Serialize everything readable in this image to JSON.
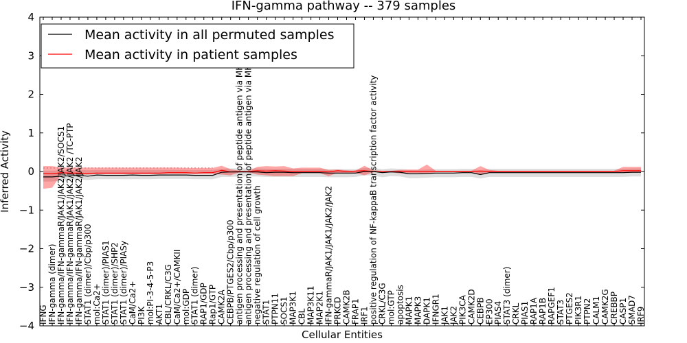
{
  "chart_data": {
    "type": "line",
    "title": "IFN-gamma pathway -- 379 samples",
    "xlabel": "Cellular Entities",
    "ylabel": "Inferred Activity",
    "ylim": [
      -4,
      4
    ],
    "yticks": [
      -4,
      -3,
      -2,
      -1,
      0,
      1,
      2,
      3,
      4
    ],
    "legend": {
      "placement": "top-left",
      "entries": [
        {
          "label": "Mean activity in all permuted samples",
          "color": "#000000"
        },
        {
          "label": "Mean activity in patient samples",
          "color": "#ff0000"
        }
      ]
    },
    "categories": [
      "IFNG",
      "IFN-gamma (dimer)",
      "IFN-gamma/IFN-gammaR/JAK1/JAK2/JAK2/SOCS1",
      "IFN-gamma/IFN-gammaR/JAK1/JAK2/JAK2 /TC-PTP",
      "IFN-gamma/IFN-gammaR/JAK1/JAK2/JAK2",
      "STAT1 (dimer)/Cbp/p300",
      "mol:Ca2+",
      "STAT1 (dimer)/PIAS1",
      "STAT1 (dimer)/SHP2",
      "STAT1 (dimer)/PIASy",
      "CaM/Ca2+",
      "PI3K",
      "mol:PI-3-4-5-P3",
      "AKT1",
      "CBL/CRKL/C3G",
      "CaM/Ca2+/CAMKII",
      "mol:GDP",
      "STAT1 (dimer)",
      "RAP1/GDP",
      "Rap1/GTP",
      "CAMK2A",
      "CEBPB/PTGES2/Cbp/p300",
      "antigen processing and presentation of peptide antigen via MHC class I",
      "antigen processing and presentation of peptide antigen via MHC class II",
      "negative regulation of cell growth",
      "STAT1",
      "PTPN11",
      "SOCS1",
      "MAP3K1",
      "CBL",
      "MAP3K11",
      "MAP2K1",
      "IFN-gammaR/JAK1/JAK1/JAK2/JAK2",
      "PRKCD",
      "CAMK2B",
      "FRAP1",
      "IRF1",
      "positive regulation of NF-kappaB transcription factor activity",
      "CRKL/C3G",
      "mol:GTP",
      "apoptosis",
      "MAPK1",
      "MAPK3",
      "DAPK1",
      "IFNGR1",
      "JAK1",
      "JAK2",
      "PIK3CA",
      "CAMK2D",
      "CEBPB",
      "EP300",
      "PIAS4",
      "STAT3 (dimer)",
      "CRKL",
      "PIAS1",
      "RAP1A",
      "RAP1B",
      "RAPGEF1",
      "STAT3",
      "PTGES2",
      "PIK3R1",
      "PTPN2",
      "CALM1",
      "CAMK2G",
      "CREBBP",
      "CASP1",
      "SMAD7",
      "IRF9"
    ],
    "series": [
      {
        "name": "Mean activity in all permuted samples",
        "color": "#000000",
        "values": [
          -0.14,
          -0.14,
          -0.12,
          -0.11,
          -0.1,
          -0.12,
          -0.09,
          -0.1,
          -0.1,
          -0.1,
          -0.09,
          -0.1,
          -0.1,
          -0.09,
          -0.09,
          -0.09,
          -0.09,
          -0.1,
          -0.1,
          -0.1,
          -0.02,
          -0.01,
          -0.01,
          -0.01,
          -0.01,
          -0.03,
          -0.02,
          -0.02,
          -0.03,
          -0.03,
          -0.03,
          -0.03,
          -0.04,
          -0.04,
          -0.04,
          -0.04,
          0.0,
          0.0,
          -0.03,
          -0.01,
          -0.02,
          -0.06,
          -0.06,
          -0.05,
          -0.04,
          -0.04,
          -0.04,
          -0.03,
          -0.03,
          -0.08,
          -0.03,
          -0.03,
          -0.03,
          -0.03,
          -0.03,
          -0.03,
          -0.03,
          -0.03,
          -0.03,
          -0.03,
          -0.03,
          -0.03,
          -0.03,
          -0.03,
          -0.03,
          -0.03,
          -0.02,
          -0.02
        ],
        "band_lower": [
          -0.26,
          -0.26,
          -0.24,
          -0.22,
          -0.21,
          -0.22,
          -0.2,
          -0.2,
          -0.2,
          -0.2,
          -0.2,
          -0.2,
          -0.2,
          -0.19,
          -0.19,
          -0.19,
          -0.19,
          -0.2,
          -0.2,
          -0.2,
          -0.14,
          -0.14,
          -0.13,
          -0.13,
          -0.13,
          -0.14,
          -0.14,
          -0.14,
          -0.14,
          -0.14,
          -0.14,
          -0.14,
          -0.15,
          -0.15,
          -0.15,
          -0.14,
          -0.1,
          -0.1,
          -0.15,
          -0.12,
          -0.13,
          -0.17,
          -0.17,
          -0.16,
          -0.15,
          -0.15,
          -0.15,
          -0.14,
          -0.14,
          -0.18,
          -0.14,
          -0.14,
          -0.14,
          -0.14,
          -0.14,
          -0.14,
          -0.14,
          -0.14,
          -0.14,
          -0.14,
          -0.14,
          -0.14,
          -0.14,
          -0.14,
          -0.14,
          -0.14,
          -0.13,
          -0.13
        ],
        "band_upper": [
          0.02,
          0.02,
          0.03,
          0.03,
          0.04,
          0.03,
          0.04,
          0.04,
          0.04,
          0.04,
          0.04,
          0.04,
          0.04,
          0.04,
          0.04,
          0.04,
          0.04,
          0.04,
          0.04,
          0.04,
          0.07,
          0.08,
          0.08,
          0.08,
          0.08,
          0.07,
          0.07,
          0.07,
          0.07,
          0.07,
          0.07,
          0.07,
          0.06,
          0.06,
          0.06,
          0.06,
          0.09,
          0.09,
          0.06,
          0.08,
          0.07,
          0.04,
          0.04,
          0.05,
          0.06,
          0.06,
          0.06,
          0.07,
          0.07,
          0.03,
          0.07,
          0.07,
          0.07,
          0.07,
          0.07,
          0.07,
          0.07,
          0.07,
          0.07,
          0.07,
          0.07,
          0.07,
          0.07,
          0.07,
          0.07,
          0.07,
          0.08,
          0.08
        ]
      },
      {
        "name": "Mean activity in patient samples",
        "color": "#ff0000",
        "values": [
          -0.05,
          -0.06,
          -0.03,
          -0.04,
          -0.04,
          -0.05,
          -0.04,
          -0.04,
          -0.04,
          -0.04,
          -0.04,
          -0.04,
          -0.04,
          -0.04,
          -0.03,
          -0.03,
          -0.03,
          -0.04,
          -0.03,
          -0.03,
          0.03,
          -0.01,
          0.0,
          0.0,
          0.02,
          0.01,
          0.02,
          0.01,
          0.0,
          0.0,
          0.0,
          0.0,
          -0.01,
          0.02,
          0.0,
          0.01,
          0.02,
          0.0,
          -0.01,
          0.0,
          0.0,
          0.0,
          0.0,
          0.0,
          0.0,
          0.0,
          0.0,
          0.0,
          0.0,
          0.01,
          0.0,
          0.0,
          0.0,
          0.0,
          0.0,
          0.0,
          0.0,
          0.0,
          0.0,
          0.0,
          0.0,
          0.0,
          0.0,
          0.0,
          0.0,
          0.02,
          0.02,
          0.02
        ],
        "band_lower": [
          -0.45,
          -0.42,
          -0.08,
          -0.08,
          -0.08,
          -0.08,
          -0.07,
          -0.07,
          -0.07,
          -0.07,
          -0.07,
          -0.07,
          -0.07,
          -0.07,
          -0.06,
          -0.06,
          -0.06,
          -0.06,
          -0.06,
          -0.06,
          -0.08,
          -0.1,
          -0.02,
          -0.02,
          -0.08,
          -0.1,
          -0.12,
          -0.12,
          -0.12,
          -0.04,
          -0.04,
          -0.04,
          -0.12,
          -0.03,
          -0.04,
          -0.04,
          -0.1,
          -0.02,
          -0.02,
          -0.02,
          -0.05,
          -0.04,
          -0.04,
          -0.06,
          -0.02,
          -0.02,
          -0.02,
          -0.02,
          -0.02,
          -0.08,
          -0.02,
          -0.02,
          -0.02,
          -0.02,
          -0.02,
          -0.02,
          -0.02,
          -0.02,
          -0.02,
          -0.02,
          -0.02,
          -0.02,
          -0.02,
          -0.02,
          -0.02,
          -0.03,
          -0.03,
          -0.03
        ],
        "band_upper": [
          0.14,
          0.14,
          0.1,
          0.1,
          0.1,
          0.1,
          0.1,
          0.1,
          0.1,
          0.1,
          0.1,
          0.1,
          0.1,
          0.1,
          0.1,
          0.1,
          0.09,
          0.09,
          0.09,
          0.09,
          0.15,
          0.06,
          0.02,
          0.02,
          0.12,
          0.14,
          0.13,
          0.14,
          0.08,
          0.1,
          0.1,
          0.1,
          0.04,
          0.05,
          0.03,
          0.02,
          0.15,
          0.03,
          0.02,
          0.02,
          0.04,
          0.05,
          0.05,
          0.18,
          0.02,
          0.02,
          0.02,
          0.02,
          0.02,
          0.14,
          0.04,
          0.02,
          0.02,
          0.02,
          0.02,
          0.02,
          0.02,
          0.02,
          0.02,
          0.02,
          0.02,
          0.02,
          0.02,
          0.02,
          0.02,
          0.12,
          0.12,
          0.12
        ]
      }
    ]
  }
}
